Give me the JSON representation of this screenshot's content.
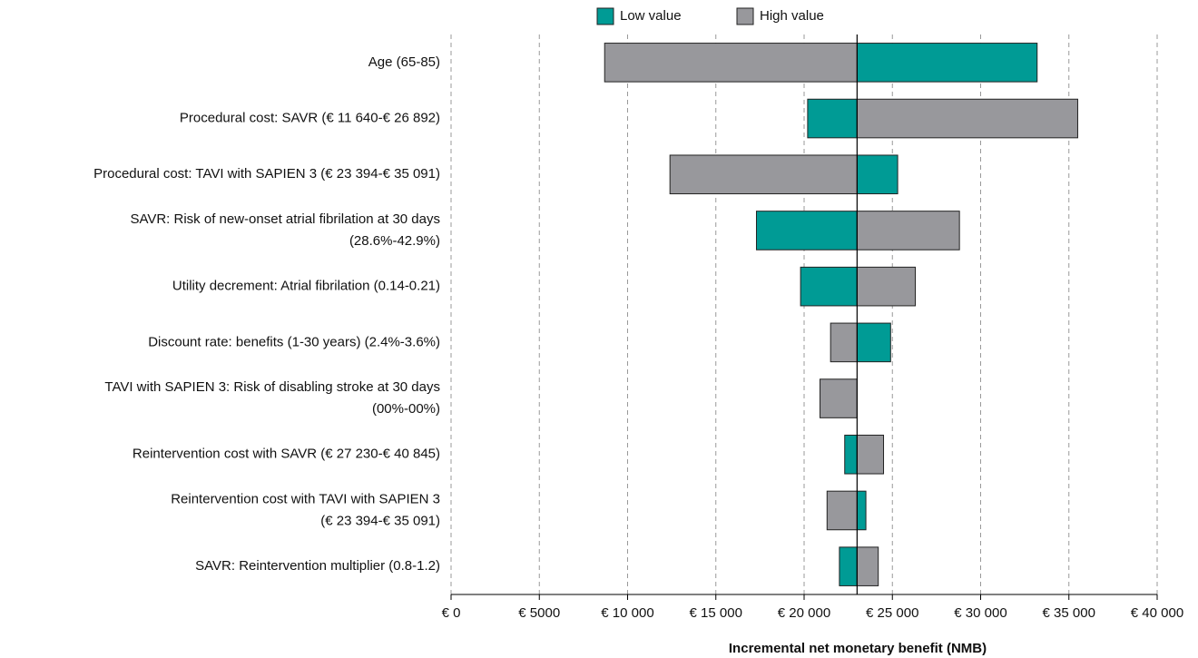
{
  "chart_data": {
    "type": "tornado",
    "categories": [
      [
        "Age (65-85)"
      ],
      [
        "Procedural cost: SAVR (€ 11 640-€ 26 892)"
      ],
      [
        "Procedural cost: TAVI with SAPIEN 3 (€ 23 394-€ 35 091)"
      ],
      [
        "SAVR: Risk of new-onset atrial fibrilation at 30 days",
        "(28.6%-42.9%)"
      ],
      [
        "Utility decrement: Atrial fibrilation (0.14-0.21)"
      ],
      [
        "Discount rate: benefits (1-30 years) (2.4%-3.6%)"
      ],
      [
        "TAVI with SAPIEN 3: Risk of disabling stroke at 30 days",
        "(00%-00%)"
      ],
      [
        "Reintervention cost with SAVR (€ 27 230-€ 40 845)"
      ],
      [
        "Reintervention cost with TAVI with SAPIEN 3",
        "(€ 23 394-€ 35 091)"
      ],
      [
        "SAVR: Reintervention multiplier (0.8-1.2)"
      ]
    ],
    "base_value": 23000,
    "series": [
      {
        "name": "Low value",
        "color": "#009b95",
        "values": [
          33200,
          20200,
          25300,
          17300,
          19800,
          24900,
          23000,
          22300,
          23500,
          22000
        ]
      },
      {
        "name": "High value",
        "color": "#98989c",
        "values": [
          8700,
          35500,
          12400,
          28800,
          26300,
          21500,
          20900,
          24500,
          21300,
          24200
        ]
      }
    ],
    "xlim": [
      0,
      40000
    ],
    "xticks": [
      {
        "value": 0,
        "label": "€ 0"
      },
      {
        "value": 5000,
        "label": "€ 5000"
      },
      {
        "value": 10000,
        "label": "€ 10 000"
      },
      {
        "value": 15000,
        "label": "€ 15 000"
      },
      {
        "value": 20000,
        "label": "€ 20 000"
      },
      {
        "value": 25000,
        "label": "€ 25 000"
      },
      {
        "value": 30000,
        "label": "€ 30 000"
      },
      {
        "value": 35000,
        "label": "€ 35 000"
      },
      {
        "value": 40000,
        "label": "€ 40 000"
      }
    ],
    "x_label": "Incremental net monetary benefit (NMB)",
    "grid": true
  }
}
